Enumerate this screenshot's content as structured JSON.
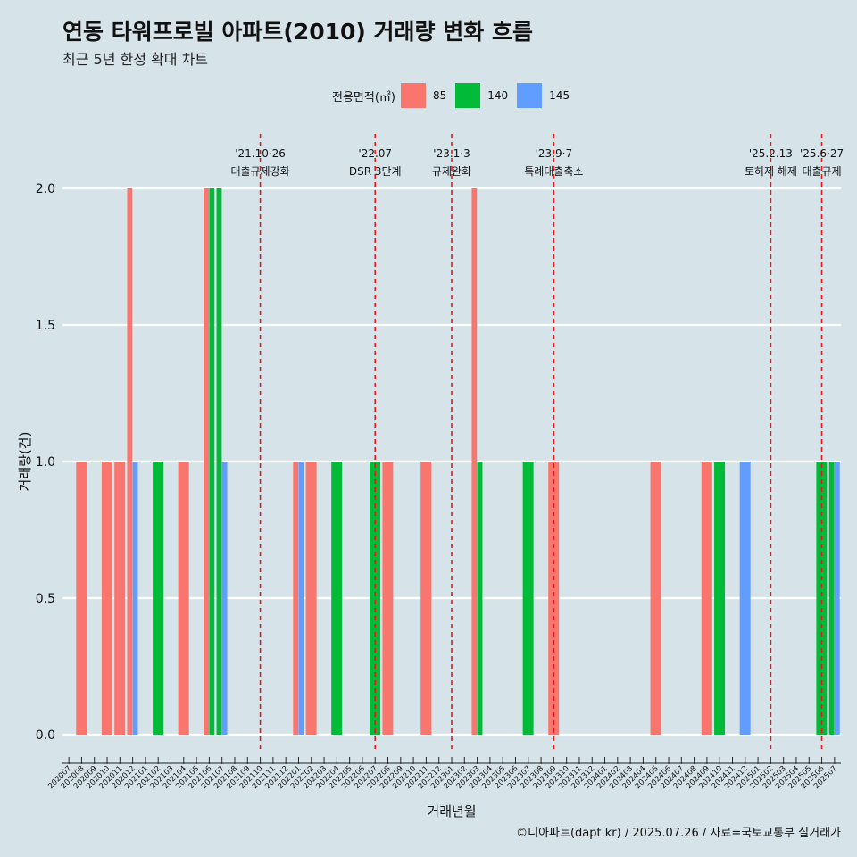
{
  "title": "연동 타워프로빌 아파트(2010) 거래량 변화 흐름",
  "subtitle": "최근 5년 한정 확대 차트",
  "caption": "©디아파트(dapt.kr) / 2025.07.26 / 자료=국토교통부 실거래가",
  "legend": {
    "title": "전용면적(㎡)",
    "items": [
      {
        "label": "85",
        "color": "#f8766d"
      },
      {
        "label": "140",
        "color": "#00ba38"
      },
      {
        "label": "145",
        "color": "#619cff"
      }
    ]
  },
  "chart_data": {
    "type": "bar",
    "xlabel": "거래년월",
    "ylabel": "거래량(건)",
    "ylim": [
      0,
      2
    ],
    "yticks": [
      "0.0",
      "0.5",
      "1.0",
      "1.5",
      "2.0"
    ],
    "grid": true,
    "legend_position": "top",
    "months": [
      "202007",
      "202008",
      "202009",
      "202010",
      "202011",
      "202012",
      "202101",
      "202102",
      "202103",
      "202104",
      "202105",
      "202106",
      "202107",
      "202108",
      "202109",
      "202110",
      "202111",
      "202112",
      "202201",
      "202202",
      "202203",
      "202204",
      "202205",
      "202206",
      "202207",
      "202208",
      "202209",
      "202210",
      "202211",
      "202212",
      "202301",
      "202302",
      "202303",
      "202304",
      "202305",
      "202306",
      "202307",
      "202308",
      "202309",
      "202310",
      "202311",
      "202312",
      "202401",
      "202402",
      "202403",
      "202404",
      "202405",
      "202406",
      "202407",
      "202408",
      "202409",
      "202410",
      "202411",
      "202412",
      "202501",
      "202502",
      "202503",
      "202504",
      "202505",
      "202506",
      "202507"
    ],
    "tick_labels": [
      "202007",
      "202008",
      "202009",
      "202010",
      "202011",
      "202012",
      "202101",
      "202102",
      "202103",
      "202104",
      "202105",
      "202106",
      "202107",
      "202108",
      "202109",
      "202110",
      "202111",
      "202112",
      "202201",
      "202202",
      "202203",
      "202204",
      "202205",
      "202206",
      "202207",
      "202208",
      "202209",
      "202210",
      "202211",
      "202212",
      "202301",
      "202302",
      "202303",
      "202304",
      "202305",
      "202306",
      "202307",
      "202308",
      "202309",
      "202310",
      "202311",
      "202312",
      "202401",
      "202402",
      "202403",
      "202404",
      "202405",
      "202406",
      "202407",
      "202408",
      "202409",
      "202410",
      "202411",
      "202412",
      "202501",
      "202502",
      "202503",
      "202504",
      "202505",
      "202506",
      "202507"
    ],
    "series": [
      {
        "name": "85",
        "color": "#f8766d"
      },
      {
        "name": "140",
        "color": "#00ba38"
      },
      {
        "name": "145",
        "color": "#619cff"
      }
    ],
    "bars": [
      {
        "month": "202008",
        "group": [
          "85"
        ],
        "series": "85",
        "value": 1
      },
      {
        "month": "202010",
        "group": [
          "85"
        ],
        "series": "85",
        "value": 1
      },
      {
        "month": "202011",
        "group": [
          "85"
        ],
        "series": "85",
        "value": 1
      },
      {
        "month": "202012",
        "group": [
          "85",
          "145"
        ],
        "series": "85",
        "value": 2
      },
      {
        "month": "202012",
        "group": [
          "85",
          "145"
        ],
        "series": "145",
        "value": 1
      },
      {
        "month": "202102",
        "group": [
          "140"
        ],
        "series": "140",
        "value": 1
      },
      {
        "month": "202104",
        "group": [
          "85"
        ],
        "series": "85",
        "value": 1
      },
      {
        "month": "202106",
        "group": [
          "85",
          "140"
        ],
        "series": "85",
        "value": 2
      },
      {
        "month": "202106",
        "group": [
          "85",
          "140"
        ],
        "series": "140",
        "value": 2
      },
      {
        "month": "202107",
        "group": [
          "140",
          "145"
        ],
        "series": "140",
        "value": 2
      },
      {
        "month": "202107",
        "group": [
          "140",
          "145"
        ],
        "series": "145",
        "value": 1
      },
      {
        "month": "202201",
        "group": [
          "85",
          "145"
        ],
        "series": "85",
        "value": 1
      },
      {
        "month": "202201",
        "group": [
          "85",
          "145"
        ],
        "series": "145",
        "value": 1
      },
      {
        "month": "202202",
        "group": [
          "85"
        ],
        "series": "85",
        "value": 1
      },
      {
        "month": "202204",
        "group": [
          "140"
        ],
        "series": "140",
        "value": 1
      },
      {
        "month": "202207",
        "group": [
          "140"
        ],
        "series": "140",
        "value": 1
      },
      {
        "month": "202208",
        "group": [
          "85"
        ],
        "series": "85",
        "value": 1
      },
      {
        "month": "202211",
        "group": [
          "85"
        ],
        "series": "85",
        "value": 1
      },
      {
        "month": "202303",
        "group": [
          "85",
          "140"
        ],
        "series": "85",
        "value": 2
      },
      {
        "month": "202303",
        "group": [
          "85",
          "140"
        ],
        "series": "140",
        "value": 1
      },
      {
        "month": "202307",
        "group": [
          "140"
        ],
        "series": "140",
        "value": 1
      },
      {
        "month": "202309",
        "group": [
          "85"
        ],
        "series": "85",
        "value": 1
      },
      {
        "month": "202405",
        "group": [
          "85"
        ],
        "series": "85",
        "value": 1
      },
      {
        "month": "202409",
        "group": [
          "85"
        ],
        "series": "85",
        "value": 1
      },
      {
        "month": "202410",
        "group": [
          "140"
        ],
        "series": "140",
        "value": 1
      },
      {
        "month": "202412",
        "group": [
          "145"
        ],
        "series": "145",
        "value": 1
      },
      {
        "month": "202506",
        "group": [
          "140"
        ],
        "series": "140",
        "value": 1
      },
      {
        "month": "202507",
        "group": [
          "140",
          "145"
        ],
        "series": "140",
        "value": 1
      },
      {
        "month": "202507",
        "group": [
          "140",
          "145"
        ],
        "series": "145",
        "value": 1
      }
    ],
    "annotations": [
      {
        "month": "202110",
        "line1": "'21.10·26",
        "line2": "대출규제강화"
      },
      {
        "month": "202207",
        "line1": "'22.07",
        "line2": "DSR 3단계"
      },
      {
        "month": "202301",
        "line1": "'23.1·3",
        "line2": "규제완화"
      },
      {
        "month": "202309",
        "line1": "'23.9·7",
        "line2": "특례대출축소"
      },
      {
        "month": "202502",
        "line1": "'25.2.13",
        "line2": "토허제 해제"
      },
      {
        "month": "202506",
        "line1": "'25.6·27",
        "line2": "대출규제"
      }
    ]
  }
}
